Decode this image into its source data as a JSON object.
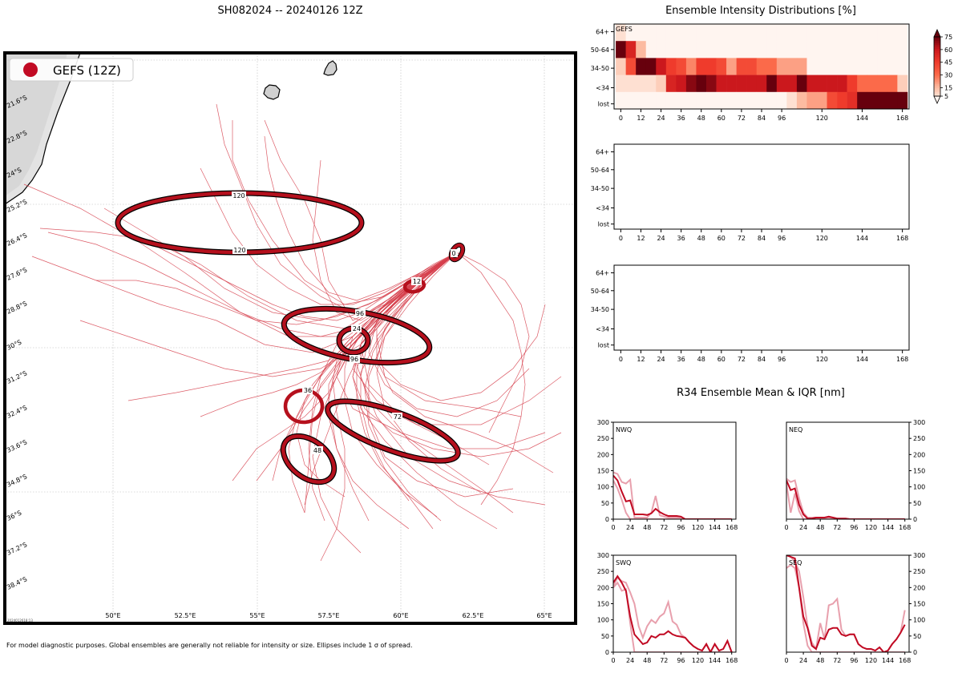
{
  "header": {
    "main_title": "SH082024 -- 20240126 12Z",
    "footer_note": "For model diagnostic purposes. Global ensembles are generally not reliable for intensity or size. Ellipses include 1 σ of spread.",
    "timestamp": "2024012618:13"
  },
  "colors": {
    "track": "#d6404c",
    "ellipse_fill": "#b5101d",
    "ellipse_edge": "#000000",
    "legend_dot": "#c10a23",
    "mean_line": "#c10a23",
    "iqr_line": "#e8a0ad",
    "land": "#e6e6e6",
    "island": "#d0d0d0"
  },
  "map": {
    "legend_label": "GEFS (12Z)",
    "lat_labels": [
      "21.6°S",
      "22.8°S",
      "24°S",
      "25.2°S",
      "26.4°S",
      "27.6°S",
      "28.8°S",
      "30°S",
      "31.2°S",
      "32.4°S",
      "33.6°S",
      "34.8°S",
      "36°S",
      "37.2°S",
      "38.4°S"
    ],
    "lon_labels": [
      "50°E",
      "52.5°E",
      "55°E",
      "57.5°E",
      "60°E",
      "62.5°E",
      "65°E"
    ],
    "ellipse_labels": [
      "0",
      "12",
      "24",
      "36",
      "48",
      "72",
      "96",
      "120"
    ]
  },
  "intensity": {
    "title": "Ensemble Intensity Distributions [%]",
    "panel_label": "GEFS",
    "row_labels": [
      "64+",
      "50-64",
      "34-50",
      "<34",
      "lost"
    ],
    "x_ticks": [
      "0",
      "12",
      "24",
      "36",
      "48",
      "60",
      "72",
      "84",
      "96",
      "120",
      "144",
      "168"
    ],
    "colorbar_ticks": [
      "75",
      "60",
      "45",
      "30",
      "15",
      "5"
    ]
  },
  "r34": {
    "title": "R34 Ensemble Mean & IQR [nm]",
    "x_ticks": [
      "0",
      "24",
      "48",
      "72",
      "96",
      "120",
      "144",
      "168"
    ],
    "y_ticks": [
      "300",
      "250",
      "200",
      "150",
      "100",
      "50",
      "0"
    ],
    "quadrants": [
      "NWQ",
      "NEQ",
      "SWQ",
      "SEQ"
    ]
  },
  "chart_data": [
    {
      "type": "heatmap",
      "title": "Ensemble Intensity Distributions [%]",
      "panel": "GEFS",
      "x_hours": [
        0,
        6,
        12,
        18,
        24,
        30,
        36,
        42,
        48,
        54,
        60,
        66,
        72,
        78,
        84,
        90,
        96,
        102,
        108,
        114,
        120,
        126,
        132,
        138,
        144,
        150,
        156,
        162,
        168
      ],
      "rows": [
        "64+",
        "50-64",
        "34-50",
        "<34",
        "lost"
      ],
      "values": [
        [
          5,
          0,
          0,
          0,
          0,
          0,
          0,
          0,
          0,
          0,
          0,
          0,
          0,
          0,
          0,
          0,
          0,
          0,
          0,
          0,
          0,
          0,
          0,
          0,
          0,
          0,
          0,
          0,
          0
        ],
        [
          80,
          55,
          15,
          0,
          0,
          0,
          0,
          0,
          0,
          0,
          0,
          0,
          0,
          0,
          0,
          0,
          0,
          0,
          0,
          0,
          0,
          0,
          0,
          0,
          0,
          0,
          0,
          0,
          0
        ],
        [
          10,
          40,
          80,
          80,
          60,
          45,
          40,
          25,
          45,
          45,
          40,
          20,
          40,
          40,
          30,
          30,
          20,
          20,
          20,
          0,
          0,
          0,
          0,
          0,
          0,
          0,
          0,
          0,
          0
        ],
        [
          5,
          5,
          5,
          5,
          10,
          55,
          60,
          70,
          80,
          70,
          60,
          60,
          60,
          60,
          60,
          80,
          60,
          60,
          80,
          60,
          60,
          60,
          60,
          45,
          30,
          30,
          30,
          30,
          10
        ],
        [
          0,
          0,
          0,
          0,
          0,
          0,
          0,
          0,
          0,
          0,
          0,
          0,
          0,
          0,
          0,
          0,
          0,
          5,
          15,
          20,
          20,
          40,
          45,
          50,
          80,
          80,
          80,
          80,
          80
        ]
      ],
      "colorbar": {
        "min": 5,
        "max": 75,
        "ticks": [
          5,
          15,
          30,
          45,
          60,
          75
        ]
      }
    },
    {
      "type": "heatmap",
      "title": "",
      "panel": "",
      "rows": [
        "64+",
        "50-64",
        "34-50",
        "<34",
        "lost"
      ],
      "values": []
    },
    {
      "type": "heatmap",
      "title": "",
      "panel": "",
      "rows": [
        "64+",
        "50-64",
        "34-50",
        "<34",
        "lost"
      ],
      "values": []
    },
    {
      "type": "line",
      "title": "NWQ",
      "xlabel": "",
      "ylabel": "",
      "xlim": [
        0,
        174
      ],
      "ylim": [
        0,
        300
      ],
      "x": [
        0,
        6,
        12,
        18,
        24,
        30,
        36,
        42,
        48,
        54,
        60,
        66,
        72,
        78,
        84,
        90,
        96,
        102,
        108,
        114,
        120,
        126,
        132,
        138,
        144,
        150,
        156,
        162,
        168
      ],
      "series": [
        {
          "name": "mean",
          "values": [
            135,
            120,
            85,
            55,
            58,
            15,
            15,
            15,
            13,
            18,
            32,
            22,
            15,
            10,
            10,
            10,
            8,
            0,
            0,
            0,
            0,
            0,
            0,
            0,
            0,
            0,
            0,
            0,
            0
          ]
        },
        {
          "name": "iqr_upper",
          "values": [
            145,
            140,
            115,
            110,
            122,
            5,
            5,
            5,
            5,
            20,
            72,
            12,
            8,
            5,
            5,
            5,
            5,
            0,
            0,
            0,
            0,
            0,
            0,
            0,
            0,
            0,
            0,
            0,
            0
          ]
        },
        {
          "name": "iqr_lower",
          "values": [
            120,
            95,
            60,
            20,
            0,
            0,
            0,
            0,
            0,
            0,
            0,
            0,
            0,
            0,
            0,
            0,
            0,
            0,
            0,
            0,
            0,
            0,
            0,
            0,
            0,
            0,
            0,
            0,
            0
          ]
        }
      ]
    },
    {
      "type": "line",
      "title": "NEQ",
      "xlabel": "",
      "ylabel": "",
      "xlim": [
        0,
        174
      ],
      "ylim": [
        0,
        300
      ],
      "x": [
        0,
        6,
        12,
        18,
        24,
        30,
        36,
        42,
        48,
        54,
        60,
        66,
        72,
        78,
        84,
        90,
        96,
        102,
        108,
        114,
        120,
        126,
        132,
        138,
        144,
        150,
        156,
        162,
        168
      ],
      "series": [
        {
          "name": "mean",
          "values": [
            120,
            90,
            95,
            45,
            15,
            2,
            2,
            5,
            5,
            5,
            8,
            5,
            2,
            2,
            2,
            0,
            0,
            0,
            0,
            0,
            0,
            0,
            0,
            0,
            0,
            0,
            0,
            0,
            0
          ]
        },
        {
          "name": "iqr_upper",
          "values": [
            125,
            115,
            120,
            65,
            20,
            5,
            5,
            5,
            5,
            5,
            5,
            5,
            2,
            2,
            2,
            0,
            0,
            0,
            0,
            0,
            0,
            0,
            0,
            0,
            0,
            0,
            0,
            0,
            0
          ]
        },
        {
          "name": "iqr_lower",
          "values": [
            110,
            20,
            80,
            25,
            0,
            0,
            0,
            0,
            0,
            0,
            0,
            0,
            0,
            0,
            0,
            0,
            0,
            0,
            0,
            0,
            0,
            0,
            0,
            0,
            0,
            0,
            0,
            0,
            0
          ]
        }
      ]
    },
    {
      "type": "line",
      "title": "SWQ",
      "xlabel": "",
      "ylabel": "",
      "xlim": [
        0,
        174
      ],
      "ylim": [
        0,
        300
      ],
      "x": [
        0,
        6,
        12,
        18,
        24,
        30,
        36,
        42,
        48,
        54,
        60,
        66,
        72,
        78,
        84,
        90,
        96,
        102,
        108,
        114,
        120,
        126,
        132,
        138,
        144,
        150,
        156,
        162,
        168
      ],
      "series": [
        {
          "name": "mean",
          "values": [
            215,
            235,
            215,
            190,
            110,
            55,
            40,
            25,
            30,
            50,
            45,
            55,
            55,
            65,
            55,
            50,
            48,
            45,
            30,
            18,
            10,
            5,
            25,
            0,
            25,
            5,
            10,
            35,
            0
          ]
        },
        {
          "name": "iqr_upper",
          "values": [
            205,
            230,
            220,
            215,
            185,
            150,
            80,
            45,
            80,
            100,
            90,
            110,
            120,
            155,
            95,
            85,
            55,
            45,
            30,
            18,
            10,
            5,
            25,
            0,
            25,
            5,
            10,
            35,
            0
          ]
        },
        {
          "name": "iqr_lower",
          "values": [
            200,
            215,
            190,
            195,
            90,
            0,
            0,
            0,
            0,
            0,
            0,
            0,
            0,
            0,
            0,
            0,
            0,
            0,
            0,
            0,
            0,
            0,
            0,
            0,
            0,
            0,
            0,
            0,
            0
          ]
        }
      ]
    },
    {
      "type": "line",
      "title": "SEQ",
      "xlabel": "",
      "ylabel": "",
      "xlim": [
        0,
        174
      ],
      "ylim": [
        0,
        300
      ],
      "x": [
        0,
        6,
        12,
        18,
        24,
        30,
        36,
        42,
        48,
        54,
        60,
        66,
        72,
        78,
        84,
        90,
        96,
        102,
        108,
        114,
        120,
        126,
        132,
        138,
        144,
        150,
        156,
        162,
        168
      ],
      "series": [
        {
          "name": "mean",
          "values": [
            300,
            295,
            290,
            200,
            110,
            75,
            20,
            10,
            45,
            40,
            70,
            75,
            75,
            55,
            50,
            55,
            55,
            25,
            15,
            10,
            10,
            5,
            15,
            0,
            5,
            25,
            40,
            60,
            85
          ]
        },
        {
          "name": "iqr_upper",
          "values": [
            300,
            295,
            280,
            250,
            170,
            80,
            30,
            10,
            90,
            40,
            145,
            150,
            165,
            70,
            50,
            55,
            55,
            25,
            15,
            10,
            10,
            5,
            15,
            0,
            5,
            25,
            40,
            60,
            130
          ]
        },
        {
          "name": "iqr_lower",
          "values": [
            260,
            270,
            260,
            200,
            90,
            20,
            0,
            0,
            0,
            0,
            0,
            0,
            0,
            0,
            0,
            0,
            0,
            0,
            0,
            0,
            0,
            0,
            0,
            0,
            0,
            0,
            0,
            0,
            0
          ]
        }
      ]
    }
  ]
}
